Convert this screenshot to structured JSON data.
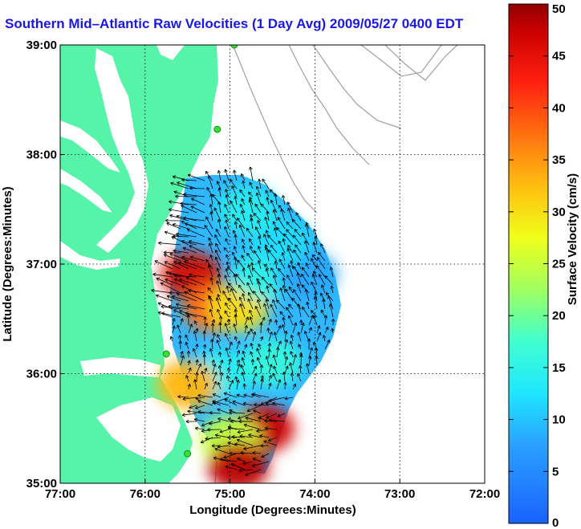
{
  "chart_data": {
    "type": "heatmap",
    "title": "Southern Mid–Atlantic Raw Velocities (1 Day Avg) 2009/05/27 0400 EDT",
    "xlabel": "Longitude (Degrees:Minutes)",
    "ylabel": "Latitude (Degrees:Minutes)",
    "colorbar_label": "Surface Velocity (cm/s)",
    "xlim": [
      -77,
      -72
    ],
    "ylim": [
      35,
      39
    ],
    "x_ticks": [
      {
        "value": -77,
        "label": "77:00"
      },
      {
        "value": -76,
        "label": "76:00"
      },
      {
        "value": -75,
        "label": "75:00"
      },
      {
        "value": -74,
        "label": "74:00"
      },
      {
        "value": -73,
        "label": "73:00"
      },
      {
        "value": -72,
        "label": "72:00"
      }
    ],
    "y_ticks": [
      {
        "value": 35,
        "label": "35:00"
      },
      {
        "value": 36,
        "label": "36:00"
      },
      {
        "value": 37,
        "label": "37:00"
      },
      {
        "value": 38,
        "label": "38:00"
      },
      {
        "value": 39,
        "label": "39:00"
      }
    ],
    "colorbar_range": [
      0,
      50
    ],
    "colorbar_ticks": [
      0,
      5,
      10,
      15,
      20,
      25,
      30,
      35,
      40,
      45,
      50
    ],
    "grid": true,
    "field_regions": [
      {
        "lon": -75.45,
        "lat": 36.9,
        "value": 46
      },
      {
        "lon": -75.2,
        "lat": 36.6,
        "value": 38
      },
      {
        "lon": -74.9,
        "lat": 36.6,
        "value": 30
      },
      {
        "lon": -74.6,
        "lat": 36.9,
        "value": 15
      },
      {
        "lon": -74.1,
        "lat": 36.9,
        "value": 8
      },
      {
        "lon": -74.4,
        "lat": 37.2,
        "value": 12
      },
      {
        "lon": -74.8,
        "lat": 37.5,
        "value": 14
      },
      {
        "lon": -75.1,
        "lat": 36.0,
        "value": 14
      },
      {
        "lon": -74.5,
        "lat": 36.1,
        "value": 16
      },
      {
        "lon": -74.6,
        "lat": 35.5,
        "value": 47
      },
      {
        "lon": -75.0,
        "lat": 35.4,
        "value": 25
      },
      {
        "lon": -74.9,
        "lat": 35.15,
        "value": 48
      },
      {
        "lon": -75.5,
        "lat": 35.9,
        "value": 33
      }
    ],
    "stations": [
      {
        "lon": -74.95,
        "lat": 39.0
      },
      {
        "lon": -75.15,
        "lat": 38.23
      },
      {
        "lon": -75.75,
        "lat": 36.18
      },
      {
        "lon": -75.5,
        "lat": 35.27
      }
    ],
    "colors": {
      "land": "#55f4a9",
      "title": "#1a18e6",
      "contour": "#a0a0a0",
      "station": "#33e033"
    }
  }
}
